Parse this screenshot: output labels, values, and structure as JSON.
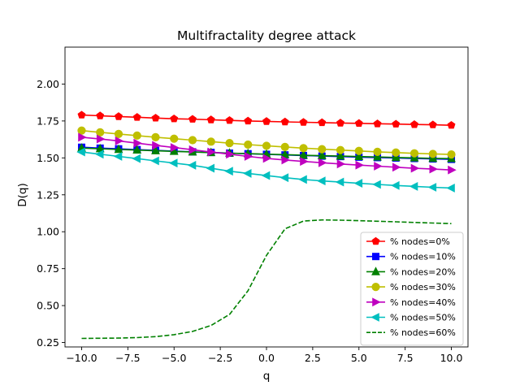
{
  "chart_data": {
    "type": "line",
    "title": "Multifractality degree attack",
    "xlabel": "q",
    "ylabel": "D(q)",
    "xlim": [
      -10.9,
      10.9
    ],
    "ylim": [
      0.22,
      2.25
    ],
    "grid": false,
    "legend_position": "lower-right",
    "x_ticks": [
      -10.0,
      -7.5,
      -5.0,
      -2.5,
      0.0,
      2.5,
      5.0,
      7.5,
      10.0
    ],
    "x_tick_labels": [
      "−10.0",
      "−7.5",
      "−5.0",
      "−2.5",
      "0.0",
      "2.5",
      "5.0",
      "7.5",
      "10.0"
    ],
    "y_ticks": [
      0.25,
      0.5,
      0.75,
      1.0,
      1.25,
      1.5,
      1.75,
      2.0
    ],
    "y_tick_labels": [
      "0.25",
      "0.50",
      "0.75",
      "1.00",
      "1.25",
      "1.50",
      "1.75",
      "2.00"
    ],
    "x": [
      -10,
      -9,
      -8,
      -7,
      -6,
      -5,
      -4,
      -3,
      -2,
      -1,
      0,
      1,
      2,
      3,
      4,
      5,
      6,
      7,
      8,
      9,
      10
    ],
    "series": [
      {
        "name": "% nodes=0%",
        "color": "#ff0000",
        "marker": "pentagon",
        "line_style": "solid",
        "values": [
          1.79,
          1.785,
          1.78,
          1.775,
          1.77,
          1.765,
          1.762,
          1.758,
          1.754,
          1.75,
          1.747,
          1.744,
          1.741,
          1.739,
          1.736,
          1.734,
          1.731,
          1.729,
          1.726,
          1.724,
          1.721
        ]
      },
      {
        "name": "% nodes=10%",
        "color": "#0000ff",
        "marker": "square",
        "line_style": "solid",
        "values": [
          1.572,
          1.566,
          1.561,
          1.556,
          1.551,
          1.546,
          1.541,
          1.537,
          1.532,
          1.528,
          1.524,
          1.52,
          1.516,
          1.512,
          1.509,
          1.505,
          1.502,
          1.499,
          1.496,
          1.493,
          1.49
        ]
      },
      {
        "name": "% nodes=20%",
        "color": "#008000",
        "marker": "triangle-up",
        "line_style": "solid",
        "values": [
          1.566,
          1.562,
          1.557,
          1.553,
          1.548,
          1.544,
          1.54,
          1.536,
          1.532,
          1.529,
          1.525,
          1.522,
          1.518,
          1.515,
          1.512,
          1.509,
          1.506,
          1.503,
          1.5,
          1.497,
          1.495
        ]
      },
      {
        "name": "% nodes=30%",
        "color": "#bfbf00",
        "marker": "circle",
        "line_style": "solid",
        "values": [
          1.685,
          1.673,
          1.662,
          1.651,
          1.64,
          1.63,
          1.62,
          1.61,
          1.6,
          1.59,
          1.582,
          1.574,
          1.566,
          1.559,
          1.553,
          1.547,
          1.541,
          1.536,
          1.531,
          1.527,
          1.523
        ]
      },
      {
        "name": "% nodes=40%",
        "color": "#bf00bf",
        "marker": "triangle-right",
        "line_style": "solid",
        "values": [
          1.64,
          1.628,
          1.615,
          1.6,
          1.585,
          1.57,
          1.555,
          1.54,
          1.525,
          1.51,
          1.497,
          1.486,
          1.476,
          1.467,
          1.459,
          1.451,
          1.444,
          1.437,
          1.43,
          1.424,
          1.418
        ]
      },
      {
        "name": "% nodes=50%",
        "color": "#00bfbf",
        "marker": "triangle-left",
        "line_style": "solid",
        "values": [
          1.54,
          1.525,
          1.51,
          1.495,
          1.48,
          1.465,
          1.45,
          1.43,
          1.41,
          1.395,
          1.38,
          1.366,
          1.354,
          1.344,
          1.336,
          1.328,
          1.32,
          1.313,
          1.307,
          1.301,
          1.296
        ]
      },
      {
        "name": "% nodes=60%",
        "color": "#008000",
        "marker": "none",
        "line_style": "dashed",
        "values": [
          0.278,
          0.279,
          0.28,
          0.283,
          0.29,
          0.303,
          0.325,
          0.365,
          0.44,
          0.6,
          0.84,
          1.02,
          1.072,
          1.08,
          1.078,
          1.075,
          1.071,
          1.067,
          1.063,
          1.059,
          1.055
        ]
      }
    ]
  }
}
